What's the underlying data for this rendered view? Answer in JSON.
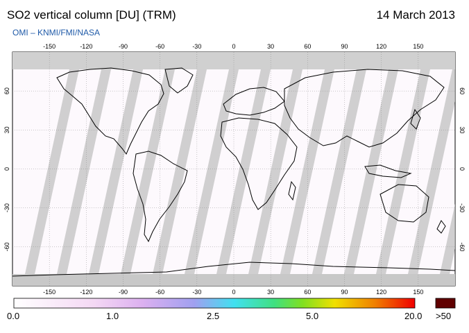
{
  "header": {
    "title": "SO2 vertical column [DU] (TRM)",
    "date": "14 March 2013",
    "subtitle": "OMI  –  KNMI/FMI/NASA"
  },
  "map": {
    "projection": "equirectangular",
    "lon_ticks": [
      "-150",
      "-120",
      "-90",
      "-60",
      "-30",
      "0",
      "30",
      "60",
      "90",
      "120",
      "150"
    ],
    "lat_ticks": [
      "60",
      "30",
      "0",
      "-30",
      "-60"
    ],
    "colors": {
      "missing": "#d0d0d0",
      "swath": "#c0c0c0",
      "border": "#000000",
      "background": "#ffffff"
    }
  },
  "colorbar": {
    "labels": [
      "0.0",
      "1.0",
      "2.5",
      "5.0",
      "20.0",
      ">50"
    ],
    "colors": [
      "#ffffff",
      "#f4d8f4",
      "#dcb0f0",
      "#a0a0f0",
      "#40e0f0",
      "#40e080",
      "#80e020",
      "#f0e000",
      "#f08000",
      "#f00000",
      "#600000"
    ]
  }
}
